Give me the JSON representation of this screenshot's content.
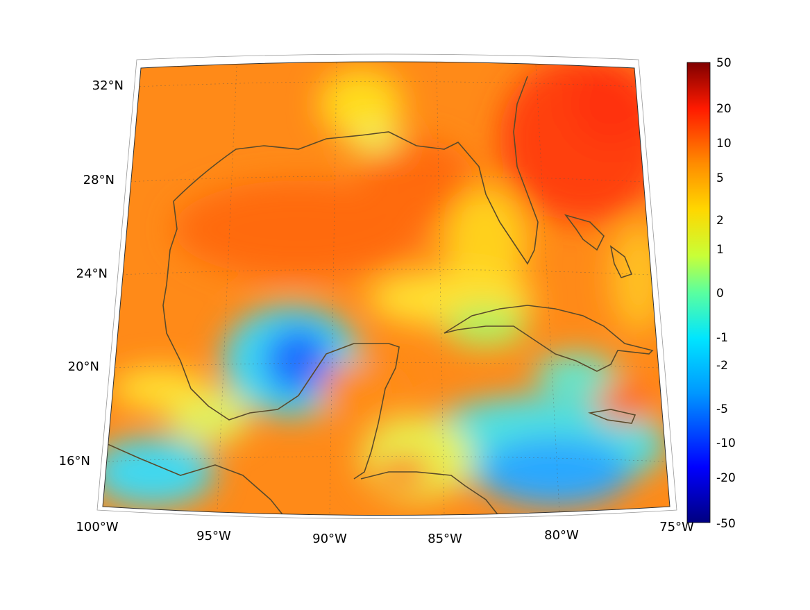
{
  "map": {
    "lon_labels": [
      "100°W",
      "95°W",
      "90°W",
      "85°W",
      "80°W",
      "75°W"
    ],
    "lat_labels": [
      "16°N",
      "20°N",
      "24°N",
      "28°N",
      "32°N"
    ],
    "colorbar": {
      "ticks": [
        "50",
        "20",
        "10",
        "5",
        "2",
        "1",
        "0",
        "-1",
        "-2",
        "-5",
        "-10",
        "-20",
        "-50"
      ],
      "colors": [
        "#800000",
        "#ff1a00",
        "#ff8c00",
        "#ffd700",
        "#c8ff37",
        "#5aff9f",
        "#00e5ff",
        "#0096ff",
        "#0000ff",
        "#000080"
      ]
    },
    "palette": {
      "coast": "#5a4a2a",
      "orange": "#ff7f10",
      "red": "#ff3a10",
      "yellow": "#ffe61a",
      "cyan": "#3ae0f0",
      "blue": "#1a60ff"
    }
  }
}
